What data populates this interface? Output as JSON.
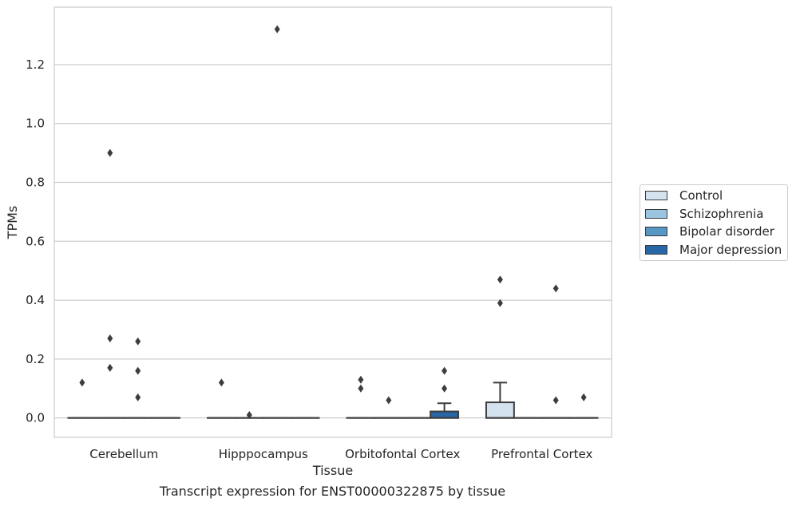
{
  "chart_data": {
    "type": "box",
    "xlabel": "Tissue",
    "ylabel": "TPMs",
    "caption": "Transcript expression for ENST00000322875 by tissue",
    "categories": [
      "Cerebellum",
      "Hipppocampus",
      "Orbitofontal Cortex",
      "Prefrontal Cortex"
    ],
    "ylim": [
      -0.066,
      1.395
    ],
    "yticks": [
      0.0,
      0.2,
      0.4,
      0.6,
      0.8,
      1.0,
      1.2
    ],
    "ytick_labels": [
      "0.0",
      "0.2",
      "0.4",
      "0.6",
      "0.8",
      "1.0",
      "1.2"
    ],
    "grid": true,
    "legend_position": "right",
    "series": [
      {
        "name": "Control",
        "color": "#d4e2f0",
        "boxes": [
          {
            "q1": 0,
            "median": 0,
            "q3": 0,
            "whisker_low": 0,
            "whisker_high": 0,
            "outliers": [
              0.12
            ]
          },
          {
            "q1": 0,
            "median": 0,
            "q3": 0,
            "whisker_low": 0,
            "whisker_high": 0,
            "outliers": [
              0.12
            ]
          },
          {
            "q1": 0,
            "median": 0,
            "q3": 0,
            "whisker_low": 0,
            "whisker_high": 0,
            "outliers": [
              0.13,
              0.1
            ]
          },
          {
            "q1": 0,
            "median": 0,
            "q3": 0.053,
            "whisker_low": 0,
            "whisker_high": 0.12,
            "outliers": [
              0.47,
              0.39
            ]
          }
        ]
      },
      {
        "name": "Schizophrenia",
        "color": "#9ac4df",
        "boxes": [
          {
            "q1": 0,
            "median": 0,
            "q3": 0,
            "whisker_low": 0,
            "whisker_high": 0,
            "outliers": [
              0.9,
              0.27,
              0.17
            ]
          },
          {
            "q1": 0,
            "median": 0,
            "q3": 0,
            "whisker_low": 0,
            "whisker_high": 0,
            "outliers": [
              0.01
            ]
          },
          {
            "q1": 0,
            "median": 0,
            "q3": 0,
            "whisker_low": 0,
            "whisker_high": 0,
            "outliers": [
              0.06
            ]
          },
          {
            "q1": 0,
            "median": 0,
            "q3": 0,
            "whisker_low": 0,
            "whisker_high": 0,
            "outliers": []
          }
        ]
      },
      {
        "name": "Bipolar disorder",
        "color": "#5896c6",
        "boxes": [
          {
            "q1": 0,
            "median": 0,
            "q3": 0,
            "whisker_low": 0,
            "whisker_high": 0,
            "outliers": [
              0.26,
              0.16,
              0.07
            ]
          },
          {
            "q1": 0,
            "median": 0,
            "q3": 0,
            "whisker_low": 0,
            "whisker_high": 0,
            "outliers": [
              1.32
            ]
          },
          {
            "q1": 0,
            "median": 0,
            "q3": 0,
            "whisker_low": 0,
            "whisker_high": 0,
            "outliers": []
          },
          {
            "q1": 0,
            "median": 0,
            "q3": 0,
            "whisker_low": 0,
            "whisker_high": 0,
            "outliers": [
              0.44,
              0.06
            ]
          }
        ]
      },
      {
        "name": "Major depression",
        "color": "#2767a6",
        "boxes": [
          {
            "q1": 0,
            "median": 0,
            "q3": 0,
            "whisker_low": 0,
            "whisker_high": 0,
            "outliers": []
          },
          {
            "q1": 0,
            "median": 0,
            "q3": 0,
            "whisker_low": 0,
            "whisker_high": 0,
            "outliers": []
          },
          {
            "q1": 0,
            "median": 0,
            "q3": 0.022,
            "whisker_low": 0,
            "whisker_high": 0.05,
            "outliers": [
              0.16,
              0.1
            ]
          },
          {
            "q1": 0,
            "median": 0,
            "q3": 0,
            "whisker_low": 0,
            "whisker_high": 0,
            "outliers": [
              0.07
            ]
          }
        ]
      }
    ]
  }
}
